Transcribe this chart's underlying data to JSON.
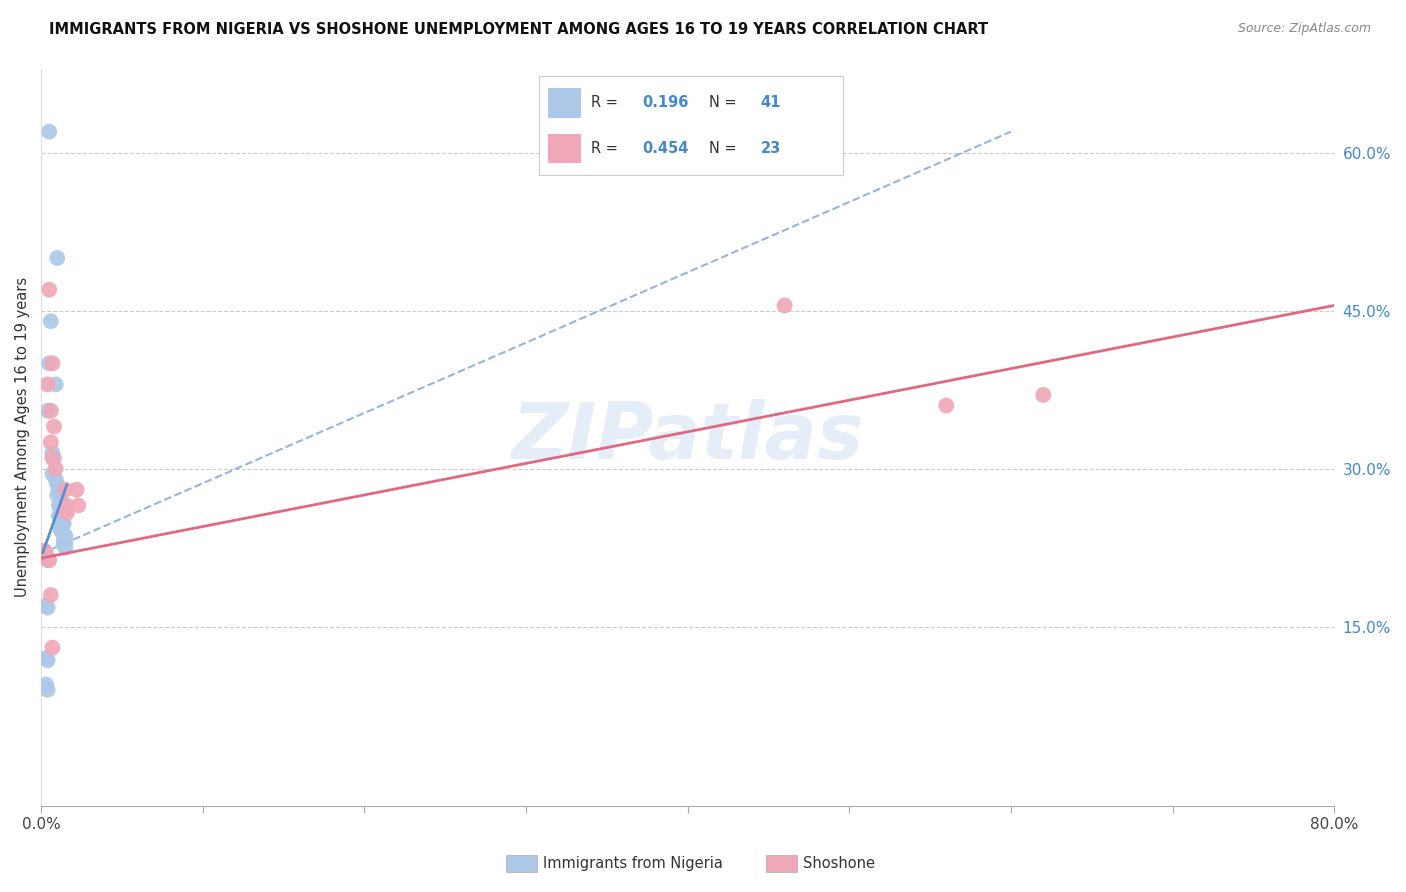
{
  "title": "IMMIGRANTS FROM NIGERIA VS SHOSHONE UNEMPLOYMENT AMONG AGES 16 TO 19 YEARS CORRELATION CHART",
  "source": "Source: ZipAtlas.com",
  "ylabel": "Unemployment Among Ages 16 to 19 years",
  "xlim": [
    0.0,
    0.8
  ],
  "ylim": [
    -0.02,
    0.68
  ],
  "xtick_vals": [
    0.0,
    0.1,
    0.2,
    0.3,
    0.4,
    0.5,
    0.6,
    0.7,
    0.8
  ],
  "xtick_labels_sparse": {
    "0.0": "0.0%",
    "0.8": "80.0%"
  },
  "ytick_vals_right": [
    0.15,
    0.3,
    0.45,
    0.6
  ],
  "ytick_labels_right": [
    "15.0%",
    "30.0%",
    "45.0%",
    "60.0%"
  ],
  "blue_color": "#adc8e8",
  "pink_color": "#f0a8b8",
  "blue_line_color": "#5b8fc9",
  "pink_line_color": "#e06880",
  "legend_R1": "0.196",
  "legend_N1": "41",
  "legend_R2": "0.454",
  "legend_N2": "23",
  "legend_label1": "Immigrants from Nigeria",
  "legend_label2": "Shoshone",
  "watermark": "ZIPatlas",
  "blue_dots": [
    [
      0.005,
      0.62
    ],
    [
      0.01,
      0.5
    ],
    [
      0.006,
      0.44
    ],
    [
      0.005,
      0.4
    ],
    [
      0.009,
      0.38
    ],
    [
      0.004,
      0.355
    ],
    [
      0.007,
      0.315
    ],
    [
      0.008,
      0.31
    ],
    [
      0.007,
      0.295
    ],
    [
      0.009,
      0.29
    ],
    [
      0.01,
      0.285
    ],
    [
      0.011,
      0.28
    ],
    [
      0.01,
      0.275
    ],
    [
      0.012,
      0.27
    ],
    [
      0.011,
      0.265
    ],
    [
      0.012,
      0.262
    ],
    [
      0.013,
      0.26
    ],
    [
      0.011,
      0.255
    ],
    [
      0.012,
      0.252
    ],
    [
      0.013,
      0.25
    ],
    [
      0.014,
      0.248
    ],
    [
      0.013,
      0.245
    ],
    [
      0.012,
      0.242
    ],
    [
      0.013,
      0.24
    ],
    [
      0.014,
      0.238
    ],
    [
      0.015,
      0.236
    ],
    [
      0.014,
      0.232
    ],
    [
      0.015,
      0.23
    ],
    [
      0.014,
      0.228
    ],
    [
      0.015,
      0.225
    ],
    [
      0.002,
      0.222
    ],
    [
      0.003,
      0.22
    ],
    [
      0.002,
      0.218
    ],
    [
      0.003,
      0.215
    ],
    [
      0.004,
      0.213
    ],
    [
      0.003,
      0.17
    ],
    [
      0.004,
      0.168
    ],
    [
      0.003,
      0.12
    ],
    [
      0.004,
      0.118
    ],
    [
      0.003,
      0.095
    ],
    [
      0.004,
      0.09
    ]
  ],
  "pink_dots": [
    [
      0.005,
      0.47
    ],
    [
      0.007,
      0.4
    ],
    [
      0.004,
      0.38
    ],
    [
      0.006,
      0.355
    ],
    [
      0.008,
      0.34
    ],
    [
      0.006,
      0.325
    ],
    [
      0.007,
      0.31
    ],
    [
      0.009,
      0.3
    ],
    [
      0.002,
      0.222
    ],
    [
      0.003,
      0.218
    ],
    [
      0.004,
      0.215
    ],
    [
      0.005,
      0.213
    ],
    [
      0.015,
      0.28
    ],
    [
      0.016,
      0.265
    ],
    [
      0.015,
      0.26
    ],
    [
      0.016,
      0.258
    ],
    [
      0.022,
      0.28
    ],
    [
      0.023,
      0.265
    ],
    [
      0.46,
      0.455
    ],
    [
      0.56,
      0.36
    ],
    [
      0.62,
      0.37
    ],
    [
      0.006,
      0.18
    ],
    [
      0.007,
      0.13
    ]
  ],
  "blue_line_solid": [
    [
      0.001,
      0.22
    ],
    [
      0.016,
      0.285
    ]
  ],
  "blue_line_dashed": [
    [
      0.001,
      0.22
    ],
    [
      0.6,
      0.62
    ]
  ],
  "pink_line": [
    [
      0.0,
      0.215
    ],
    [
      0.8,
      0.455
    ]
  ]
}
